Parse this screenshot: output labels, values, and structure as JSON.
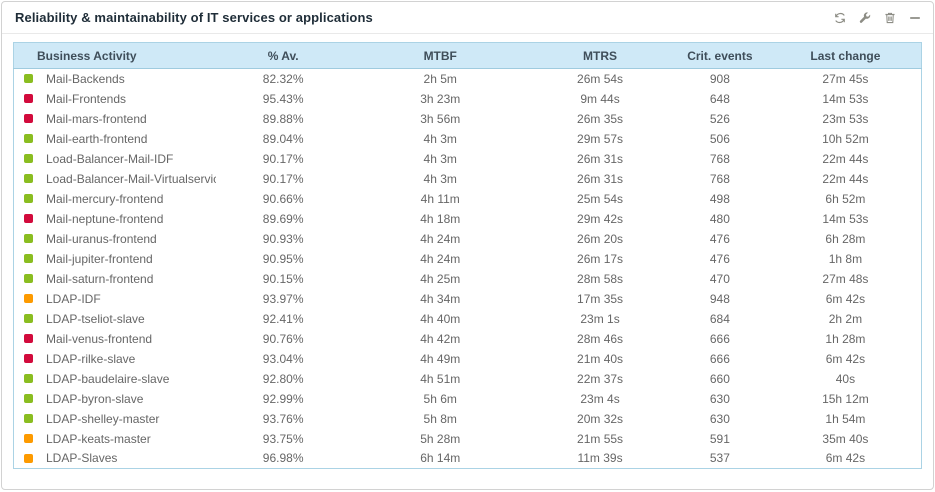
{
  "header": {
    "title": "Reliability & maintainability of IT services or applications",
    "actions": [
      {
        "name": "refresh",
        "label": "refresh"
      },
      {
        "name": "configure",
        "label": "configure"
      },
      {
        "name": "delete",
        "label": "delete"
      },
      {
        "name": "minimize",
        "label": "minimize"
      }
    ]
  },
  "colors": {
    "status_green": "#8abd20",
    "status_red": "#d20a3c",
    "status_orange": "#fd9a00",
    "header_bg": "#cfe9f7",
    "table_border": "#abd3e5",
    "icon_gray": "#8d8d85"
  },
  "table": {
    "columns": [
      "Business Activity",
      "% Av.",
      "MTBF",
      "MTRS",
      "Crit. events",
      "Last change"
    ],
    "rows": [
      {
        "status": "green",
        "activity": "Mail-Backends",
        "availability": "82.32%",
        "mtbf": "2h 5m",
        "mtrs": "26m 54s",
        "crit_events": "908",
        "last_change": "27m 45s"
      },
      {
        "status": "red",
        "activity": "Mail-Frontends",
        "availability": "95.43%",
        "mtbf": "3h 23m",
        "mtrs": "9m 44s",
        "crit_events": "648",
        "last_change": "14m 53s"
      },
      {
        "status": "red",
        "activity": "Mail-mars-frontend",
        "availability": "89.88%",
        "mtbf": "3h 56m",
        "mtrs": "26m 35s",
        "crit_events": "526",
        "last_change": "23m 53s"
      },
      {
        "status": "green",
        "activity": "Mail-earth-frontend",
        "availability": "89.04%",
        "mtbf": "4h 3m",
        "mtrs": "29m 57s",
        "crit_events": "506",
        "last_change": "10h 52m"
      },
      {
        "status": "green",
        "activity": "Load-Balancer-Mail-IDF",
        "availability": "90.17%",
        "mtbf": "4h 3m",
        "mtrs": "26m 31s",
        "crit_events": "768",
        "last_change": "22m 44s"
      },
      {
        "status": "green",
        "activity": "Load-Balancer-Mail-Virtualservice",
        "availability": "90.17%",
        "mtbf": "4h 3m",
        "mtrs": "26m 31s",
        "crit_events": "768",
        "last_change": "22m 44s"
      },
      {
        "status": "green",
        "activity": "Mail-mercury-frontend",
        "availability": "90.66%",
        "mtbf": "4h 11m",
        "mtrs": "25m 54s",
        "crit_events": "498",
        "last_change": "6h 52m"
      },
      {
        "status": "red",
        "activity": "Mail-neptune-frontend",
        "availability": "89.69%",
        "mtbf": "4h 18m",
        "mtrs": "29m 42s",
        "crit_events": "480",
        "last_change": "14m 53s"
      },
      {
        "status": "green",
        "activity": "Mail-uranus-frontend",
        "availability": "90.93%",
        "mtbf": "4h 24m",
        "mtrs": "26m 20s",
        "crit_events": "476",
        "last_change": "6h 28m"
      },
      {
        "status": "green",
        "activity": "Mail-jupiter-frontend",
        "availability": "90.95%",
        "mtbf": "4h 24m",
        "mtrs": "26m 17s",
        "crit_events": "476",
        "last_change": "1h 8m"
      },
      {
        "status": "green",
        "activity": "Mail-saturn-frontend",
        "availability": "90.15%",
        "mtbf": "4h 25m",
        "mtrs": "28m 58s",
        "crit_events": "470",
        "last_change": "27m 48s"
      },
      {
        "status": "orange",
        "activity": "LDAP-IDF",
        "availability": "93.97%",
        "mtbf": "4h 34m",
        "mtrs": "17m 35s",
        "crit_events": "948",
        "last_change": "6m 42s"
      },
      {
        "status": "green",
        "activity": "LDAP-tseliot-slave",
        "availability": "92.41%",
        "mtbf": "4h 40m",
        "mtrs": "23m 1s",
        "crit_events": "684",
        "last_change": "2h 2m"
      },
      {
        "status": "red",
        "activity": "Mail-venus-frontend",
        "availability": "90.76%",
        "mtbf": "4h 42m",
        "mtrs": "28m 46s",
        "crit_events": "666",
        "last_change": "1h 28m"
      },
      {
        "status": "red",
        "activity": "LDAP-rilke-slave",
        "availability": "93.04%",
        "mtbf": "4h 49m",
        "mtrs": "21m 40s",
        "crit_events": "666",
        "last_change": "6m 42s"
      },
      {
        "status": "green",
        "activity": "LDAP-baudelaire-slave",
        "availability": "92.80%",
        "mtbf": "4h 51m",
        "mtrs": "22m 37s",
        "crit_events": "660",
        "last_change": "40s"
      },
      {
        "status": "green",
        "activity": "LDAP-byron-slave",
        "availability": "92.99%",
        "mtbf": "5h 6m",
        "mtrs": "23m 4s",
        "crit_events": "630",
        "last_change": "15h 12m"
      },
      {
        "status": "green",
        "activity": "LDAP-shelley-master",
        "availability": "93.76%",
        "mtbf": "5h 8m",
        "mtrs": "20m 32s",
        "crit_events": "630",
        "last_change": "1h 54m"
      },
      {
        "status": "orange",
        "activity": "LDAP-keats-master",
        "availability": "93.75%",
        "mtbf": "5h 28m",
        "mtrs": "21m 55s",
        "crit_events": "591",
        "last_change": "35m 40s"
      },
      {
        "status": "orange",
        "activity": "LDAP-Slaves",
        "availability": "96.98%",
        "mtbf": "6h 14m",
        "mtrs": "11m 39s",
        "crit_events": "537",
        "last_change": "6m 42s"
      }
    ]
  }
}
